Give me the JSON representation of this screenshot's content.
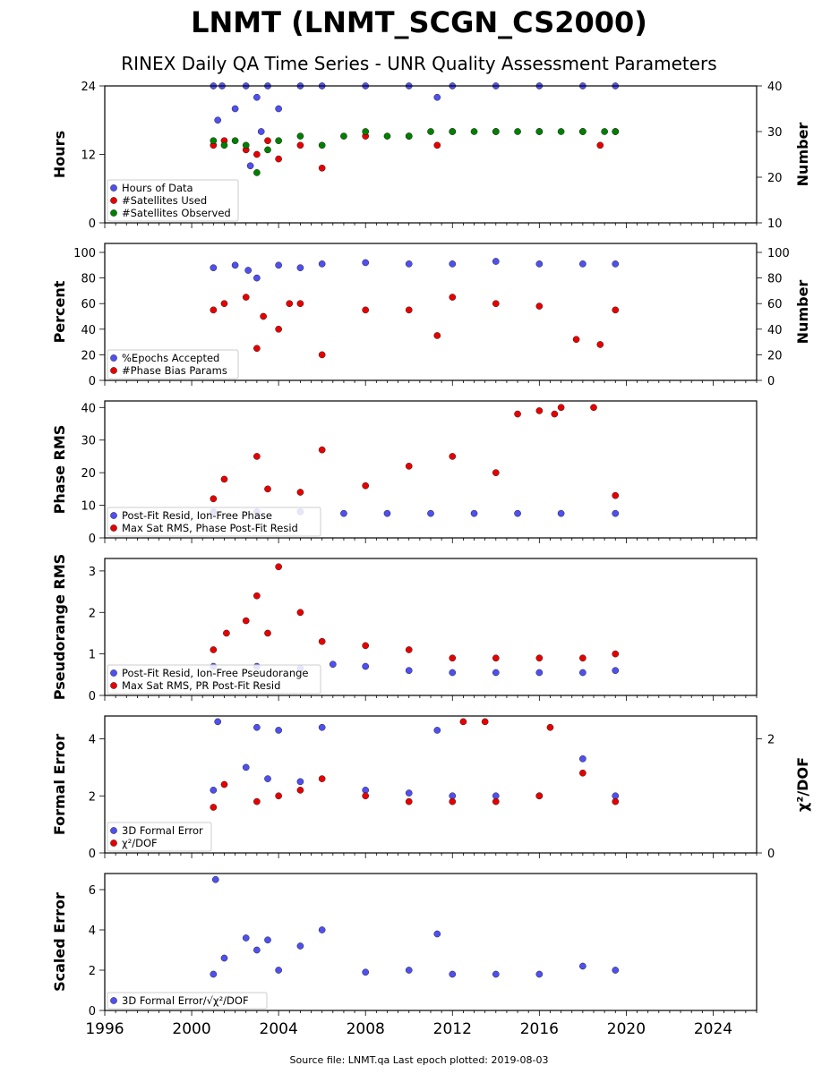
{
  "title": "LNMT (LNMT_SCGN_CS2000)",
  "subtitle": "RINEX Daily QA Time Series - UNR Quality Assessment Parameters",
  "footer": "Source file: LNMT.qa Last epoch plotted: 2019-08-03",
  "colors": {
    "blue": "#5050f0",
    "red": "#e80000",
    "green": "#008000"
  },
  "chart_data": [
    {
      "type": "scatter",
      "ylabel": "Hours",
      "ylim": [
        0,
        24
      ],
      "yticks": [
        0,
        12,
        24
      ],
      "ylabel_right": "Number",
      "ylim_right": [
        10,
        40
      ],
      "yticks_right": [
        10,
        20,
        30,
        40
      ],
      "xlim": [
        1996,
        2026
      ],
      "series": [
        {
          "name": "Hours of Data",
          "color": "blue",
          "axis": "left",
          "x": [
            2001.0,
            2001.2,
            2001.4,
            2002.0,
            2002.5,
            2002.7,
            2003.0,
            2003.2,
            2003.5,
            2004.0,
            2005.0,
            2006.0,
            2008.0,
            2010.0,
            2011.3,
            2012.0,
            2014.0,
            2016.0,
            2018.0,
            2019.5
          ],
          "y": [
            24,
            18,
            24,
            20,
            24,
            10,
            22,
            16,
            24,
            20,
            24,
            24,
            24,
            24,
            22,
            24,
            24,
            24,
            24,
            24
          ]
        },
        {
          "name": "#Satellites Used",
          "color": "red",
          "axis": "right",
          "x": [
            2001.0,
            2001.5,
            2002.5,
            2003.0,
            2003.5,
            2004.0,
            2005.0,
            2006.0,
            2008.0,
            2010.0,
            2011.3,
            2012.0,
            2014.0,
            2016.0,
            2018.0,
            2018.8,
            2019.5
          ],
          "y": [
            27,
            28,
            26,
            25,
            28,
            24,
            27,
            22,
            29,
            29,
            27,
            30,
            30,
            30,
            30,
            27,
            30
          ]
        },
        {
          "name": "#Satellites Observed",
          "color": "green",
          "axis": "right",
          "x": [
            2001.0,
            2001.5,
            2002.0,
            2002.5,
            2003.0,
            2003.5,
            2004.0,
            2005.0,
            2006.0,
            2007.0,
            2008.0,
            2009.0,
            2010.0,
            2011.0,
            2012.0,
            2013.0,
            2014.0,
            2015.0,
            2016.0,
            2017.0,
            2018.0,
            2019.0,
            2019.5
          ],
          "y": [
            28,
            27,
            28,
            27,
            21,
            26,
            28,
            29,
            27,
            29,
            30,
            29,
            29,
            30,
            30,
            30,
            30,
            30,
            30,
            30,
            30,
            30,
            30
          ]
        }
      ]
    },
    {
      "type": "scatter",
      "ylabel": "Percent",
      "ylim": [
        0,
        107
      ],
      "yticks": [
        0,
        20,
        40,
        60,
        80,
        100
      ],
      "ylabel_right": "Number",
      "yticks_right": [
        0,
        20,
        40,
        60,
        80,
        100
      ],
      "xlim": [
        1996,
        2026
      ],
      "series": [
        {
          "name": "%Epochs Accepted",
          "color": "blue",
          "x": [
            2001.0,
            2002.0,
            2002.6,
            2003.0,
            2004.0,
            2005.0,
            2006.0,
            2008.0,
            2010.0,
            2012.0,
            2014.0,
            2016.0,
            2018.0,
            2019.5
          ],
          "y": [
            88,
            90,
            86,
            80,
            90,
            88,
            91,
            92,
            91,
            91,
            93,
            91,
            91,
            91
          ]
        },
        {
          "name": "#Phase Bias Params",
          "color": "red",
          "x": [
            2001.0,
            2001.5,
            2002.5,
            2003.0,
            2003.3,
            2004.0,
            2004.5,
            2005.0,
            2006.0,
            2008.0,
            2010.0,
            2011.3,
            2012.0,
            2014.0,
            2016.0,
            2017.7,
            2018.8,
            2019.5
          ],
          "y": [
            55,
            60,
            65,
            25,
            50,
            40,
            60,
            60,
            20,
            55,
            55,
            35,
            65,
            60,
            58,
            32,
            28,
            55
          ]
        }
      ]
    },
    {
      "type": "scatter",
      "ylabel": "Phase RMS",
      "ylim": [
        0,
        42
      ],
      "yticks": [
        0,
        10,
        20,
        30,
        40
      ],
      "xlim": [
        1996,
        2026
      ],
      "series": [
        {
          "name": "Post-Fit Resid, Ion-Free Phase",
          "color": "blue",
          "x": [
            2001.0,
            2003.0,
            2005.0,
            2007.0,
            2009.0,
            2011.0,
            2013.0,
            2015.0,
            2017.0,
            2019.5
          ],
          "y": [
            8,
            8,
            8,
            7.5,
            7.5,
            7.5,
            7.5,
            7.5,
            7.5,
            7.5
          ]
        },
        {
          "name": "Max Sat RMS, Phase Post-Fit Resid",
          "color": "red",
          "x": [
            2001.0,
            2001.5,
            2003.0,
            2003.5,
            2005.0,
            2006.0,
            2008.0,
            2010.0,
            2012.0,
            2014.0,
            2015.0,
            2016.0,
            2016.7,
            2017.0,
            2018.5,
            2019.5
          ],
          "y": [
            12,
            18,
            25,
            15,
            14,
            27,
            16,
            22,
            25,
            20,
            38,
            39,
            38,
            40,
            40,
            13
          ]
        }
      ]
    },
    {
      "type": "scatter",
      "ylabel": "Pseudorange RMS",
      "ylim": [
        0,
        3.3
      ],
      "yticks": [
        0,
        1,
        2,
        3
      ],
      "xlim": [
        1996,
        2026
      ],
      "series": [
        {
          "name": "Post-Fit Resid, Ion-Free Pseudorange",
          "color": "blue",
          "x": [
            2001.0,
            2003.0,
            2005.0,
            2006.5,
            2008.0,
            2010.0,
            2012.0,
            2014.0,
            2016.0,
            2018.0,
            2019.5
          ],
          "y": [
            0.7,
            0.7,
            0.65,
            0.75,
            0.7,
            0.6,
            0.55,
            0.55,
            0.55,
            0.55,
            0.6
          ]
        },
        {
          "name": "Max Sat RMS, PR Post-Fit Resid",
          "color": "red",
          "x": [
            2001.0,
            2001.6,
            2002.5,
            2003.0,
            2003.5,
            2004.0,
            2005.0,
            2006.0,
            2008.0,
            2010.0,
            2012.0,
            2014.0,
            2016.0,
            2018.0,
            2019.5
          ],
          "y": [
            1.1,
            1.5,
            1.8,
            2.4,
            1.5,
            3.1,
            2.0,
            1.3,
            1.2,
            1.1,
            0.9,
            0.9,
            0.9,
            0.9,
            1.0
          ]
        }
      ]
    },
    {
      "type": "scatter",
      "ylabel": "Formal Error",
      "ylim": [
        0,
        4.8
      ],
      "yticks": [
        0,
        2,
        4
      ],
      "ylabel_right": "χ²/DOF",
      "ylim_right": [
        0,
        2.4
      ],
      "yticks_right": [
        0,
        2
      ],
      "xlim": [
        1996,
        2026
      ],
      "series": [
        {
          "name": "3D Formal Error",
          "color": "blue",
          "axis": "left",
          "x": [
            2001.0,
            2001.2,
            2002.5,
            2003.0,
            2003.5,
            2004.0,
            2005.0,
            2006.0,
            2008.0,
            2010.0,
            2011.3,
            2012.0,
            2014.0,
            2016.0,
            2018.0,
            2019.5
          ],
          "y": [
            2.2,
            4.6,
            3.0,
            4.4,
            2.6,
            4.3,
            2.5,
            4.4,
            2.2,
            2.1,
            4.3,
            2.0,
            2.0,
            2.0,
            3.3,
            2.0
          ]
        },
        {
          "name": "χ²/DOF",
          "color": "red",
          "axis": "right",
          "x": [
            2001.0,
            2001.5,
            2003.0,
            2004.0,
            2005.0,
            2006.0,
            2008.0,
            2010.0,
            2012.0,
            2012.5,
            2013.5,
            2014.0,
            2016.0,
            2016.5,
            2018.0,
            2019.5
          ],
          "y": [
            0.8,
            1.2,
            0.9,
            1.0,
            1.1,
            1.3,
            1.0,
            0.9,
            0.9,
            2.3,
            2.3,
            0.9,
            1.0,
            2.2,
            1.4,
            0.9
          ]
        }
      ]
    },
    {
      "type": "scatter",
      "ylabel": "Scaled Error",
      "ylim": [
        0,
        6.8
      ],
      "yticks": [
        0,
        2,
        4,
        6
      ],
      "xlim": [
        1996,
        2026
      ],
      "xticks": [
        1996,
        2000,
        2004,
        2008,
        2012,
        2016,
        2020,
        2024
      ],
      "series": [
        {
          "name": "3D Formal Error/√χ²/DOF",
          "color": "blue",
          "x": [
            2001.0,
            2001.1,
            2001.5,
            2002.5,
            2003.0,
            2003.5,
            2004.0,
            2005.0,
            2006.0,
            2008.0,
            2010.0,
            2011.3,
            2012.0,
            2014.0,
            2016.0,
            2018.0,
            2019.5
          ],
          "y": [
            1.8,
            6.5,
            2.6,
            3.6,
            3.0,
            3.5,
            2.0,
            3.2,
            4.0,
            1.9,
            2.0,
            3.8,
            1.8,
            1.8,
            1.8,
            2.2,
            2.0
          ]
        }
      ]
    }
  ]
}
